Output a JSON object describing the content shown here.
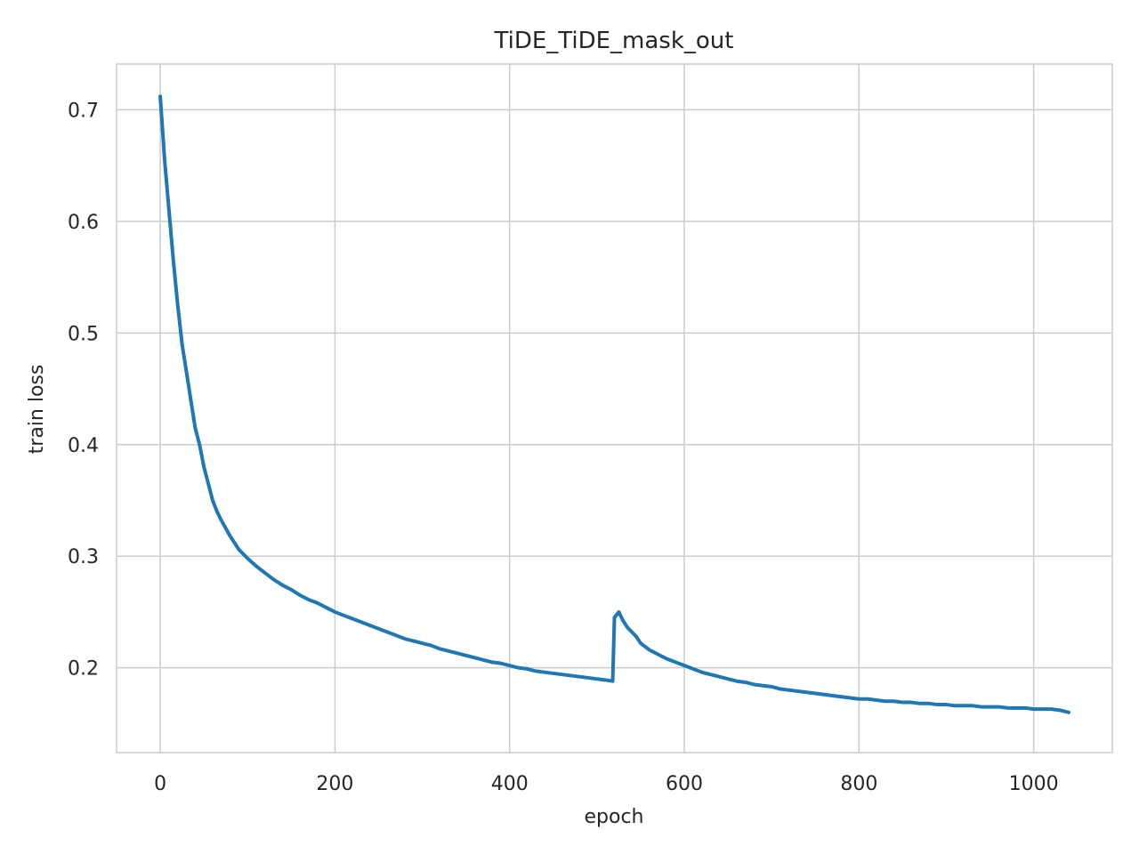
{
  "chart_data": {
    "type": "line",
    "title": "TiDE_TiDE_mask_out",
    "xlabel": "epoch",
    "ylabel": "train loss",
    "xlim": [
      -50,
      1090
    ],
    "ylim": [
      0.124,
      0.741
    ],
    "xticks": [
      0,
      200,
      400,
      600,
      800,
      1000
    ],
    "xtick_labels": [
      "0",
      "200",
      "400",
      "600",
      "800",
      "1000"
    ],
    "yticks": [
      0.2,
      0.3,
      0.4,
      0.5,
      0.6,
      0.7
    ],
    "ytick_labels": [
      "0.2",
      "0.3",
      "0.4",
      "0.5",
      "0.6",
      "0.7"
    ],
    "grid": true,
    "colors": {
      "line": "#1f77b4",
      "grid": "#cccccc",
      "spine": "#cccccc",
      "text": "#262626"
    },
    "series": [
      {
        "name": "train loss",
        "x": [
          0,
          5,
          10,
          15,
          20,
          25,
          30,
          35,
          40,
          45,
          50,
          55,
          60,
          65,
          70,
          75,
          80,
          90,
          100,
          110,
          120,
          130,
          140,
          150,
          160,
          170,
          180,
          190,
          200,
          210,
          220,
          230,
          240,
          250,
          260,
          270,
          280,
          290,
          300,
          310,
          320,
          330,
          340,
          350,
          360,
          370,
          380,
          390,
          400,
          410,
          420,
          430,
          440,
          450,
          460,
          470,
          480,
          490,
          500,
          510,
          518,
          520,
          525,
          530,
          535,
          540,
          545,
          550,
          560,
          570,
          580,
          590,
          600,
          610,
          620,
          630,
          640,
          650,
          660,
          670,
          680,
          690,
          700,
          710,
          720,
          730,
          740,
          750,
          760,
          770,
          780,
          790,
          800,
          810,
          820,
          830,
          840,
          850,
          860,
          870,
          880,
          890,
          900,
          910,
          920,
          930,
          940,
          950,
          960,
          970,
          980,
          990,
          1000,
          1010,
          1020,
          1030,
          1040
        ],
        "y": [
          0.712,
          0.655,
          0.61,
          0.565,
          0.525,
          0.49,
          0.465,
          0.44,
          0.415,
          0.4,
          0.38,
          0.365,
          0.35,
          0.34,
          0.332,
          0.325,
          0.318,
          0.306,
          0.298,
          0.291,
          0.285,
          0.279,
          0.274,
          0.27,
          0.265,
          0.261,
          0.258,
          0.254,
          0.25,
          0.247,
          0.244,
          0.241,
          0.238,
          0.235,
          0.232,
          0.229,
          0.226,
          0.224,
          0.222,
          0.22,
          0.217,
          0.215,
          0.213,
          0.211,
          0.209,
          0.207,
          0.205,
          0.204,
          0.202,
          0.2,
          0.199,
          0.197,
          0.196,
          0.195,
          0.194,
          0.193,
          0.192,
          0.191,
          0.19,
          0.189,
          0.188,
          0.245,
          0.25,
          0.242,
          0.236,
          0.232,
          0.228,
          0.222,
          0.216,
          0.212,
          0.208,
          0.205,
          0.202,
          0.199,
          0.196,
          0.194,
          0.192,
          0.19,
          0.188,
          0.187,
          0.185,
          0.184,
          0.183,
          0.181,
          0.18,
          0.179,
          0.178,
          0.177,
          0.176,
          0.175,
          0.174,
          0.173,
          0.172,
          0.172,
          0.171,
          0.17,
          0.17,
          0.169,
          0.169,
          0.168,
          0.168,
          0.167,
          0.167,
          0.166,
          0.166,
          0.166,
          0.165,
          0.165,
          0.165,
          0.164,
          0.164,
          0.164,
          0.163,
          0.163,
          0.163,
          0.162,
          0.16
        ]
      }
    ]
  }
}
